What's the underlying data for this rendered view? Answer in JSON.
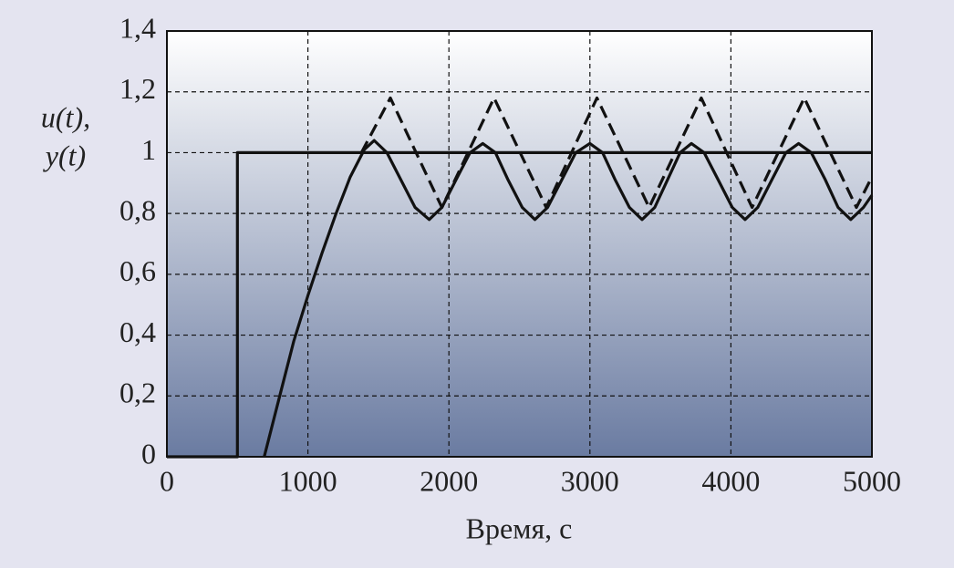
{
  "chart_data": {
    "type": "line",
    "ylabel": [
      "u(t),",
      "y(t)"
    ],
    "xlabel": "Время, с",
    "xlim": [
      0,
      5000
    ],
    "xticks": [
      0,
      1000,
      2000,
      3000,
      4000,
      5000
    ],
    "ylim": [
      0,
      1.4
    ],
    "yticks": [
      0,
      {
        "value": 0.2,
        "label": "0,2"
      },
      {
        "value": 0.4,
        "label": "0,4"
      },
      {
        "value": 0.6,
        "label": "0,6"
      },
      {
        "value": 0.8,
        "label": "0,8"
      },
      1,
      {
        "value": 1.2,
        "label": "1,2"
      },
      {
        "value": 1.4,
        "label": "1,4"
      }
    ],
    "grid": true,
    "series": [
      {
        "color": "#111111",
        "style": "solid",
        "x": [
          0,
          500,
          500,
          5000
        ],
        "values": [
          0,
          0,
          1,
          1
        ]
      },
      {
        "color": "#111111",
        "style": "dashed",
        "x": [
          1380,
          1585,
          1950,
          2320,
          2690,
          3050,
          3420,
          3790,
          4150,
          4520,
          4890,
          5000
        ],
        "values": [
          1.0,
          1.18,
          0.82,
          1.18,
          0.82,
          1.18,
          0.82,
          1.18,
          0.82,
          1.18,
          0.82,
          0.92
        ]
      },
      {
        "color": "#111111",
        "style": "solid",
        "x": [
          690,
          800,
          900,
          1000,
          1100,
          1200,
          1300,
          1400,
          1470,
          1560,
          1660,
          1760,
          1860,
          1950,
          2050,
          2150,
          2240,
          2330,
          2420,
          2520,
          2610,
          2700,
          2800,
          2900,
          3000,
          3090,
          3180,
          3280,
          3370,
          3460,
          3550,
          3640,
          3720,
          3810,
          3910,
          4010,
          4100,
          4190,
          4290,
          4390,
          4480,
          4570,
          4670,
          4760,
          4850,
          4940,
          5000
        ],
        "values": [
          0,
          0.2,
          0.38,
          0.53,
          0.67,
          0.8,
          0.92,
          1.01,
          1.04,
          1.0,
          0.91,
          0.82,
          0.78,
          0.82,
          0.91,
          1.0,
          1.03,
          1.0,
          0.91,
          0.82,
          0.78,
          0.82,
          0.91,
          1.0,
          1.03,
          1.0,
          0.91,
          0.82,
          0.78,
          0.82,
          0.91,
          1.0,
          1.03,
          1.0,
          0.91,
          0.82,
          0.78,
          0.82,
          0.91,
          1.0,
          1.03,
          1.0,
          0.91,
          0.82,
          0.78,
          0.82,
          0.86
        ]
      }
    ]
  }
}
